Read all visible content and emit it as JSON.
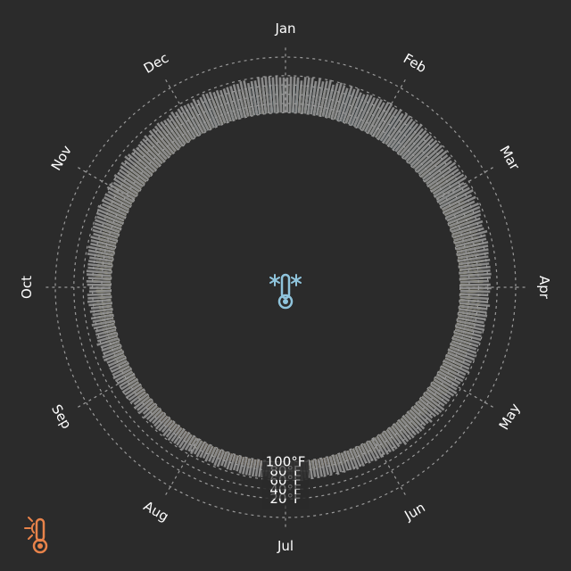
{
  "chart_data": {
    "type": "radial-bar",
    "title": "",
    "months": [
      "Jan",
      "Feb",
      "Mar",
      "Apr",
      "May",
      "Jun",
      "Jul",
      "Aug",
      "Sep",
      "Oct",
      "Nov",
      "Dec"
    ],
    "radial_ticks": [
      "20°F",
      "40°F",
      "60°F",
      "80°F",
      "100°F"
    ],
    "radial_tick_values": [
      20,
      40,
      60,
      80,
      100
    ],
    "rlim": [
      -20,
      100
    ],
    "orientation": "Jan at top, clockwise, temperature increases toward center",
    "series": [
      {
        "name": "",
        "role": "daily high",
        "monthly_mean": [
          36,
          38,
          46,
          58,
          68,
          78,
          82,
          80,
          72,
          60,
          48,
          38
        ],
        "monthly_spread": [
          10,
          10,
          10,
          9,
          8,
          8,
          7,
          7,
          8,
          9,
          10,
          10
        ]
      },
      {
        "name": "",
        "role": "daily low",
        "monthly_mean": [
          22,
          23,
          30,
          40,
          50,
          60,
          65,
          63,
          55,
          44,
          33,
          25
        ],
        "monthly_spread": [
          8,
          8,
          7,
          6,
          6,
          5,
          5,
          5,
          6,
          7,
          8,
          8
        ]
      }
    ],
    "colors": {
      "background": "#2b2b2b",
      "cold": "#8fc4dc",
      "mild": "#f5efb0",
      "hot": "#e8834a",
      "low_bar": "#8a8a8a",
      "grid": "#9a9a9a"
    },
    "grid": true,
    "legend": "none"
  },
  "icons": {
    "center": "snowflake-thermometer-icon",
    "corner": "sun-thermometer-icon",
    "center_color": "#8fc4dc",
    "corner_color": "#e8834a"
  }
}
